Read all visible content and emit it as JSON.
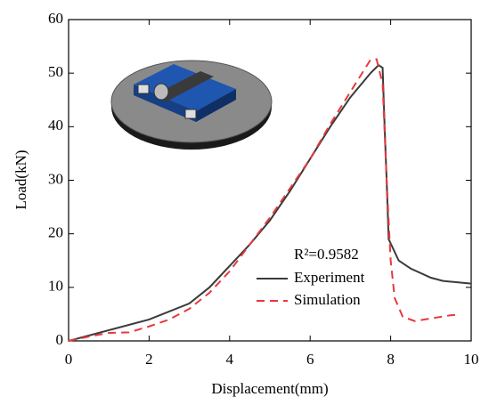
{
  "chart_data": {
    "type": "line",
    "xlabel": "Displacement(mm)",
    "ylabel": "Load(kN)",
    "annotation": "R²=0.9582",
    "xlim": [
      0,
      10
    ],
    "xticks": [
      0,
      2,
      4,
      6,
      8,
      10
    ],
    "ylim": [
      0,
      60
    ],
    "yticks": [
      0,
      10,
      20,
      30,
      40,
      50,
      60
    ],
    "legend": "lower-right",
    "series": [
      {
        "name": "Experiment",
        "color": "#3a3a3a",
        "dash": "solid",
        "x": [
          0,
          0.5,
          1,
          2,
          3,
          3.5,
          4,
          4.5,
          5,
          5.5,
          6,
          6.5,
          7,
          7.5,
          7.7,
          7.8,
          7.85,
          7.9,
          7.95,
          8.2,
          8.5,
          9,
          9.3,
          10
        ],
        "values": [
          0,
          1,
          2,
          4,
          7,
          10,
          14,
          18,
          22.5,
          28,
          34,
          40,
          45.5,
          50,
          51.5,
          51,
          40,
          30,
          19,
          15,
          13.5,
          11.8,
          11.2,
          10.7
        ]
      },
      {
        "name": "Simulation",
        "color": "#e8383d",
        "dash": "dashed",
        "x": [
          0,
          0.5,
          1,
          1.5,
          2,
          2.5,
          3,
          3.5,
          4,
          4.5,
          5,
          5.5,
          6,
          6.5,
          7,
          7.5,
          7.65,
          7.8,
          7.9,
          8,
          8.1,
          8.3,
          8.6,
          9,
          9.5,
          9.7
        ],
        "values": [
          0,
          0.8,
          1.5,
          1.6,
          2.7,
          4,
          6,
          9,
          13,
          18,
          23,
          28.5,
          34,
          40.5,
          46.5,
          52.5,
          52.6,
          48,
          30,
          15,
          8,
          4.5,
          3.7,
          4.2,
          4.8,
          4.9
        ]
      }
    ]
  }
}
